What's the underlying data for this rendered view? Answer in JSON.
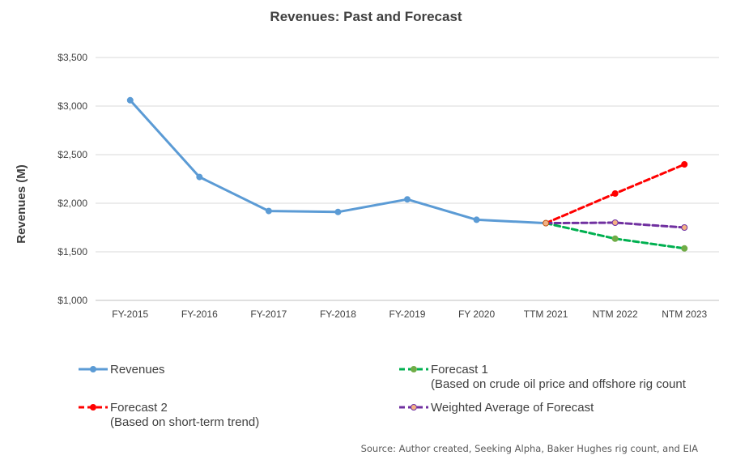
{
  "chart_data": {
    "type": "line",
    "title": "Revenues: Past and Forecast",
    "xlabel": "",
    "ylabel": "Revenues (M)",
    "ylim": [
      1000,
      3500
    ],
    "yticks": [
      1000,
      1500,
      2000,
      2500,
      3000,
      3500
    ],
    "ytick_labels": [
      "$1,000",
      "$1,500",
      "$2,000",
      "$2,500",
      "$3,000",
      "$3,500"
    ],
    "categories": [
      "FY-2015",
      "FY-2016",
      "FY-2017",
      "FY-2018",
      "FY-2019",
      "FY 2020",
      "TTM 2021",
      "NTM 2022",
      "NTM 2023"
    ],
    "grid": "horizontal",
    "legend_position": "bottom",
    "series": [
      {
        "name": "Revenues",
        "color": "#5B9BD5",
        "marker_color": "#5B9BD5",
        "dashed": false,
        "values": [
          3060,
          2270,
          1920,
          1910,
          2040,
          1830,
          1795,
          null,
          null
        ]
      },
      {
        "name": "Forecast 1",
        "name_line2": "(Based on crude oil price and offshore rig count",
        "color": "#00B050",
        "marker_color": "#70AD47",
        "dashed": true,
        "values": [
          null,
          null,
          null,
          null,
          null,
          null,
          1795,
          1635,
          1535
        ]
      },
      {
        "name": "Forecast 2",
        "name_line2": "(Based on short-term trend)",
        "color": "#FF0000",
        "marker_color": "#FF0000",
        "dashed": true,
        "values": [
          null,
          null,
          null,
          null,
          null,
          null,
          1795,
          2100,
          2400
        ]
      },
      {
        "name": "Weighted Average of Forecast",
        "color": "#7030A0",
        "marker_color": "#F4B183",
        "dashed": true,
        "values": [
          null,
          null,
          null,
          null,
          null,
          null,
          1795,
          1800,
          1750
        ]
      }
    ],
    "source": "Source: Author created, Seeking Alpha, Baker Hughes rig count, and EIA"
  }
}
